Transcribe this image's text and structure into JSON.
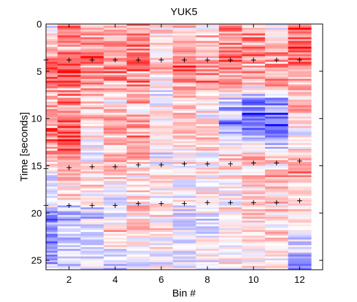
{
  "chart_data": {
    "type": "heatmap",
    "title": "YUK5",
    "xlabel": "Bin #",
    "ylabel": "Time [seconds]",
    "xlim": [
      1,
      13
    ],
    "ylim": [
      0,
      26
    ],
    "y_reversed": true,
    "x_ticks": [
      2,
      4,
      6,
      8,
      10,
      12
    ],
    "y_ticks": [
      0,
      5,
      10,
      15,
      20,
      25
    ],
    "n_bins": 12,
    "row_step_seconds": 0.2,
    "colormap": {
      "negative": "#0000ff",
      "zero": "#ffffff",
      "positive": "#ff0000"
    },
    "marker_color": "#000000",
    "marker_symbol": "+",
    "markers": [
      {
        "x": 1,
        "y": 3.8
      },
      {
        "x": 2,
        "y": 3.8
      },
      {
        "x": 3,
        "y": 3.8
      },
      {
        "x": 4,
        "y": 3.8
      },
      {
        "x": 5,
        "y": 3.8
      },
      {
        "x": 6,
        "y": 3.8
      },
      {
        "x": 7,
        "y": 3.8
      },
      {
        "x": 8,
        "y": 3.8
      },
      {
        "x": 9,
        "y": 3.8
      },
      {
        "x": 10,
        "y": 3.8
      },
      {
        "x": 11,
        "y": 3.8
      },
      {
        "x": 12,
        "y": 3.8
      },
      {
        "x": 1,
        "y": 15.3
      },
      {
        "x": 2,
        "y": 15.2
      },
      {
        "x": 3,
        "y": 15.1
      },
      {
        "x": 4,
        "y": 15.1
      },
      {
        "x": 5,
        "y": 14.9
      },
      {
        "x": 6,
        "y": 14.9
      },
      {
        "x": 7,
        "y": 14.8
      },
      {
        "x": 8,
        "y": 14.8
      },
      {
        "x": 9,
        "y": 14.8
      },
      {
        "x": 10,
        "y": 14.7
      },
      {
        "x": 11,
        "y": 14.7
      },
      {
        "x": 12,
        "y": 14.5
      },
      {
        "x": 1,
        "y": 19.2
      },
      {
        "x": 2,
        "y": 19.2
      },
      {
        "x": 3,
        "y": 19.2
      },
      {
        "x": 4,
        "y": 19.2
      },
      {
        "x": 5,
        "y": 19.0
      },
      {
        "x": 6,
        "y": 19.0
      },
      {
        "x": 7,
        "y": 19.0
      },
      {
        "x": 8,
        "y": 18.9
      },
      {
        "x": 9,
        "y": 18.9
      },
      {
        "x": 10,
        "y": 18.9
      },
      {
        "x": 11,
        "y": 18.9
      },
      {
        "x": 12,
        "y": 18.7
      }
    ],
    "bin_profiles": [
      [
        [
          0,
          -0.2
        ],
        [
          2,
          0.3
        ],
        [
          4,
          0.6
        ],
        [
          6,
          0.8
        ],
        [
          8,
          0.3
        ],
        [
          10,
          0.5
        ],
        [
          12,
          0.7
        ],
        [
          14,
          0.4
        ],
        [
          16,
          -0.2
        ],
        [
          18,
          0.1
        ],
        [
          20,
          -0.5
        ],
        [
          22,
          -0.6
        ],
        [
          24,
          -0.5
        ],
        [
          26,
          -0.3
        ]
      ],
      [
        [
          0,
          0.8
        ],
        [
          2,
          0.6
        ],
        [
          4,
          0.9
        ],
        [
          6,
          0.8
        ],
        [
          8,
          0.5
        ],
        [
          10,
          0.6
        ],
        [
          12,
          0.8
        ],
        [
          14,
          0.4
        ],
        [
          16,
          0.4
        ],
        [
          18,
          0.2
        ],
        [
          20,
          -0.3
        ],
        [
          22,
          -0.2
        ],
        [
          24,
          -0.3
        ],
        [
          26,
          -0.3
        ]
      ],
      [
        [
          0,
          0.3
        ],
        [
          2,
          0.5
        ],
        [
          4,
          0.7
        ],
        [
          6,
          0.5
        ],
        [
          8,
          0.2
        ],
        [
          10,
          0.3
        ],
        [
          12,
          0.1
        ],
        [
          14,
          -0.1
        ],
        [
          16,
          0.2
        ],
        [
          18,
          0.1
        ],
        [
          20,
          -0.2
        ],
        [
          22,
          -0.3
        ],
        [
          24,
          -0.2
        ],
        [
          26,
          -0.2
        ]
      ],
      [
        [
          0,
          0.3
        ],
        [
          2,
          0.6
        ],
        [
          4,
          0.6
        ],
        [
          6,
          0.5
        ],
        [
          8,
          0.1
        ],
        [
          10,
          0.5
        ],
        [
          12,
          0.4
        ],
        [
          14,
          0.3
        ],
        [
          16,
          0.2
        ],
        [
          18,
          0.0
        ],
        [
          20,
          -0.1
        ],
        [
          22,
          0.3
        ],
        [
          24,
          -0.1
        ],
        [
          26,
          -0.3
        ]
      ],
      [
        [
          0,
          0.4
        ],
        [
          2,
          0.5
        ],
        [
          4,
          0.7
        ],
        [
          6,
          0.6
        ],
        [
          8,
          0.3
        ],
        [
          10,
          0.5
        ],
        [
          12,
          0.4
        ],
        [
          14,
          0.3
        ],
        [
          16,
          0.1
        ],
        [
          18,
          0.2
        ],
        [
          20,
          0.2
        ],
        [
          22,
          0.3
        ],
        [
          24,
          0.1
        ],
        [
          26,
          -0.1
        ]
      ],
      [
        [
          0,
          0.1
        ],
        [
          2,
          0.2
        ],
        [
          4,
          0.3
        ],
        [
          6,
          0.1
        ],
        [
          8,
          -0.1
        ],
        [
          10,
          0.1
        ],
        [
          12,
          0.0
        ],
        [
          14,
          -0.1
        ],
        [
          16,
          0.1
        ],
        [
          18,
          0.0
        ],
        [
          20,
          0.1
        ],
        [
          22,
          0.1
        ],
        [
          24,
          0.0
        ],
        [
          26,
          0.0
        ]
      ],
      [
        [
          0,
          0.3
        ],
        [
          2,
          0.4
        ],
        [
          4,
          0.6
        ],
        [
          6,
          0.5
        ],
        [
          8,
          0.2
        ],
        [
          10,
          0.3
        ],
        [
          12,
          0.2
        ],
        [
          14,
          0.1
        ],
        [
          16,
          0.1
        ],
        [
          18,
          0.0
        ],
        [
          20,
          -0.1
        ],
        [
          22,
          -0.2
        ],
        [
          24,
          -0.1
        ],
        [
          26,
          -0.1
        ]
      ],
      [
        [
          0,
          0.2
        ],
        [
          2,
          0.3
        ],
        [
          4,
          0.5
        ],
        [
          6,
          0.6
        ],
        [
          8,
          0.2
        ],
        [
          10,
          0.1
        ],
        [
          12,
          0.2
        ],
        [
          14,
          0.1
        ],
        [
          16,
          0.0
        ],
        [
          18,
          0.1
        ],
        [
          20,
          -0.1
        ],
        [
          22,
          -0.1
        ],
        [
          24,
          0.0
        ],
        [
          26,
          -0.1
        ]
      ],
      [
        [
          0,
          0.4
        ],
        [
          2,
          0.5
        ],
        [
          4,
          0.6
        ],
        [
          6,
          0.5
        ],
        [
          8,
          -0.2
        ],
        [
          10,
          -0.6
        ],
        [
          12,
          -0.2
        ],
        [
          14,
          0.2
        ],
        [
          16,
          0.1
        ],
        [
          18,
          0.0
        ],
        [
          20,
          0.1
        ],
        [
          22,
          0.0
        ],
        [
          24,
          0.1
        ],
        [
          26,
          0.0
        ]
      ],
      [
        [
          0,
          0.3
        ],
        [
          2,
          0.6
        ],
        [
          4,
          0.5
        ],
        [
          6,
          0.4
        ],
        [
          8,
          -0.5
        ],
        [
          10,
          -0.7
        ],
        [
          12,
          -0.3
        ],
        [
          14,
          0.3
        ],
        [
          16,
          0.2
        ],
        [
          18,
          0.1
        ],
        [
          20,
          0.2
        ],
        [
          22,
          0.1
        ],
        [
          24,
          0.0
        ],
        [
          26,
          0.1
        ]
      ],
      [
        [
          0,
          -0.3
        ],
        [
          2,
          0.4
        ],
        [
          4,
          0.5
        ],
        [
          6,
          0.6
        ],
        [
          8,
          -0.4
        ],
        [
          10,
          -0.8
        ],
        [
          12,
          -0.5
        ],
        [
          14,
          0.1
        ],
        [
          16,
          0.3
        ],
        [
          18,
          0.2
        ],
        [
          20,
          0.3
        ],
        [
          22,
          0.2
        ],
        [
          24,
          0.1
        ],
        [
          26,
          0.0
        ]
      ],
      [
        [
          0,
          0.7
        ],
        [
          2,
          0.8
        ],
        [
          4,
          0.6
        ],
        [
          6,
          0.4
        ],
        [
          8,
          0.3
        ],
        [
          10,
          0.2
        ],
        [
          12,
          0.0
        ],
        [
          14,
          0.3
        ],
        [
          16,
          0.4
        ],
        [
          18,
          0.1
        ],
        [
          20,
          0.3
        ],
        [
          22,
          -0.2
        ],
        [
          24,
          -0.3
        ],
        [
          26,
          -0.4
        ]
      ]
    ]
  }
}
